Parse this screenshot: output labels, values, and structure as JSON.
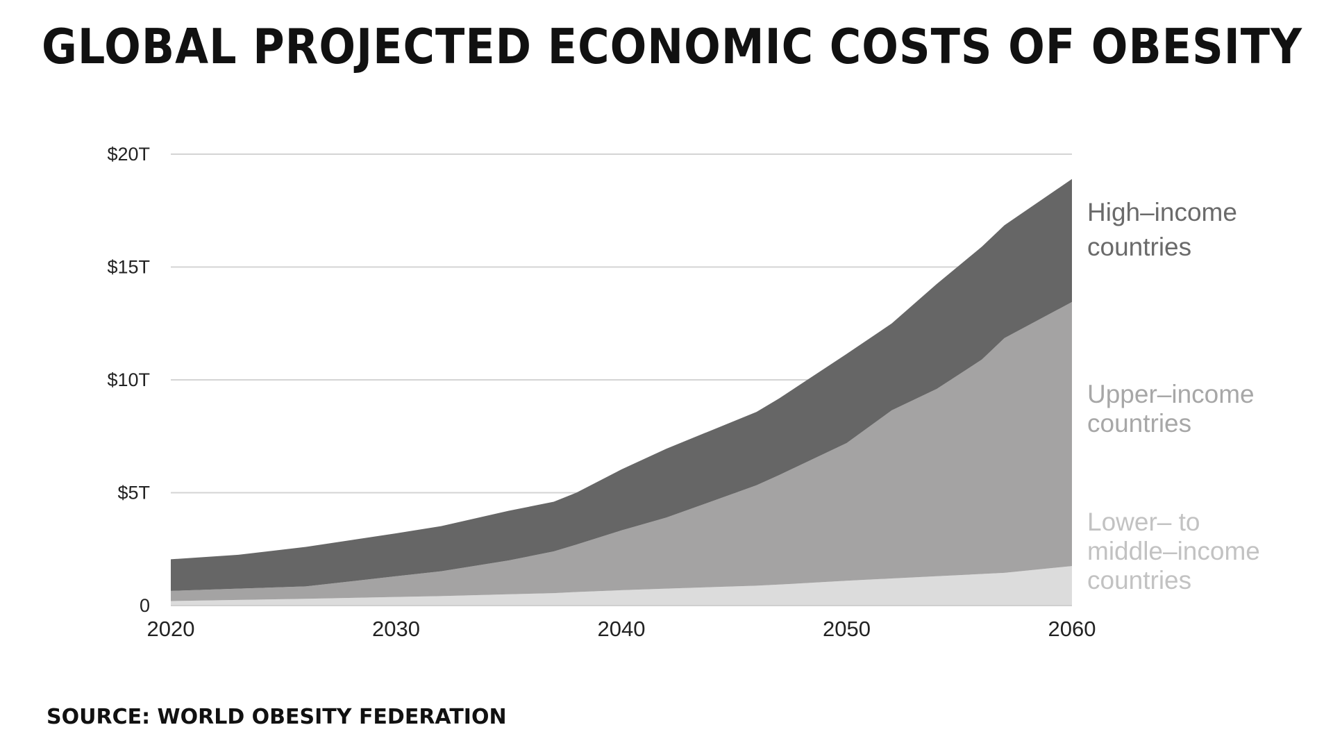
{
  "title": "GLOBAL PROJECTED ECONOMIC COSTS OF OBESITY",
  "source": "SOURCE: WORLD OBESITY FEDERATION",
  "colors": {
    "high": "#666666",
    "upper": "#a4a3a3",
    "lower": "#dcdcdc",
    "grid": "#d4d4d4"
  },
  "chart_data": {
    "type": "area",
    "stacked": true,
    "title": "GLOBAL PROJECTED ECONOMIC COSTS OF OBESITY",
    "xlabel": "",
    "ylabel": "",
    "x": [
      2020,
      2023,
      2026,
      2030,
      2032,
      2035,
      2037,
      2038,
      2040,
      2042,
      2046,
      2047,
      2050,
      2052,
      2054,
      2056,
      2057,
      2060
    ],
    "xlim": [
      2020,
      2060
    ],
    "ylim": [
      0,
      20
    ],
    "x_ticks": [
      2020,
      2030,
      2040,
      2050,
      2060
    ],
    "x_tick_labels": [
      "2020",
      "2030",
      "2040",
      "2050",
      "2060"
    ],
    "y_ticks": [
      0,
      5,
      10,
      15,
      20
    ],
    "y_tick_labels": [
      "0",
      "$5T",
      "$10T",
      "$15T",
      "$20T"
    ],
    "grid": true,
    "series": [
      {
        "name": "Lower- to middle-income countries",
        "key": "lower",
        "values": [
          0.2,
          0.25,
          0.3,
          0.38,
          0.42,
          0.5,
          0.55,
          0.6,
          0.68,
          0.75,
          0.88,
          0.93,
          1.1,
          1.2,
          1.3,
          1.4,
          1.45,
          1.75
        ]
      },
      {
        "name": "Upper-income countries",
        "key": "upper",
        "values": [
          0.45,
          0.5,
          0.55,
          0.92,
          1.1,
          1.5,
          1.85,
          2.1,
          2.65,
          3.15,
          4.45,
          4.85,
          6.1,
          7.45,
          8.3,
          9.5,
          10.4,
          11.7
        ]
      },
      {
        "name": "High-income countries",
        "key": "high",
        "values": [
          1.4,
          1.5,
          1.75,
          1.9,
          2.0,
          2.2,
          2.2,
          2.3,
          2.7,
          3.05,
          3.25,
          3.4,
          3.95,
          3.85,
          4.65,
          5.0,
          5.0,
          5.45
        ]
      }
    ],
    "legend": [
      {
        "key": "high",
        "lines": [
          "High–income",
          "countries"
        ]
      },
      {
        "key": "upper",
        "lines": [
          "Upper–income",
          "countries"
        ]
      },
      {
        "key": "lower",
        "lines": [
          "Lower– to",
          "middle–income",
          "countries"
        ]
      }
    ]
  }
}
